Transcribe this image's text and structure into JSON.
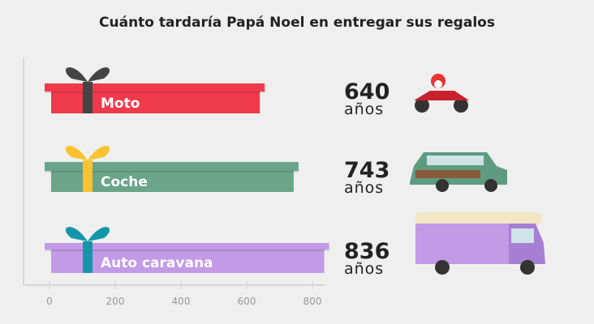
{
  "chart_data": {
    "type": "bar",
    "orientation": "horizontal",
    "title": "Cuánto tardaría Papá Noel en entregar sus regalos",
    "categories": [
      "Moto",
      "Coche",
      "Auto caravana"
    ],
    "values": [
      640,
      743,
      836
    ],
    "value_unit": "años",
    "xlim": [
      0,
      800
    ],
    "xticks": [
      "0",
      "200",
      "400",
      "600",
      "800"
    ],
    "grid": false,
    "colors": [
      "#ef3a4c",
      "#6aa589",
      "#c39ae6"
    ],
    "ribbon_colors": [
      "#444444",
      "#f9c230",
      "#1596a8"
    ],
    "icons": [
      "motorcycle-santa-icon",
      "station-wagon-santa-icon",
      "camper-van-santa-icon"
    ]
  }
}
